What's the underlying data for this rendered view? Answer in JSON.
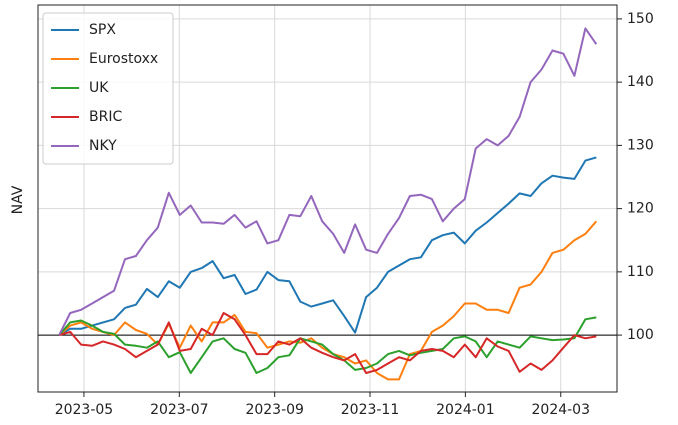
{
  "chart_data": {
    "type": "line",
    "y_label": "NAV",
    "x": [
      2023.29,
      2023.3092,
      2023.3283,
      2023.3475,
      2023.3666,
      2023.3858,
      2023.405,
      2023.4241,
      2023.4433,
      2023.4624,
      2023.4816,
      2023.5008,
      2023.5199,
      2023.5391,
      2023.5582,
      2023.5774,
      2023.5966,
      2023.6157,
      2023.6349,
      2023.654,
      2023.6732,
      2023.6924,
      2023.7115,
      2023.7307,
      2023.7498,
      2023.769,
      2023.7882,
      2023.8073,
      2023.8265,
      2023.8456,
      2023.8648,
      2023.884,
      2023.9031,
      2023.9223,
      2023.9414,
      2023.9606,
      2023.9798,
      2023.9989,
      2024.0181,
      2024.0372,
      2024.0564,
      2024.0756,
      2024.0947,
      2024.1139,
      2024.133,
      2024.1522,
      2024.1714,
      2024.1905,
      2024.2097,
      2024.2288
    ],
    "series": [
      {
        "name": "SPX",
        "color": "#1f77b4",
        "values": [
          100,
          101,
          101,
          101.5,
          102,
          102.5,
          104.3,
          104.8,
          107.3,
          106,
          108.5,
          107.5,
          110,
          110.6,
          111.7,
          109,
          109.5,
          106.5,
          107.2,
          110,
          108.7,
          108.5,
          105.3,
          104.5,
          105,
          105.5,
          103,
          100.4,
          106,
          107.5,
          110,
          111,
          112,
          112.3,
          115,
          115.8,
          116.2,
          114.5,
          116.5,
          117.8,
          119.3,
          120.8,
          122.4,
          122,
          124,
          125.2,
          124.9,
          124.7,
          127.6,
          128.1
        ]
      },
      {
        "name": "Eurostoxx",
        "color": "#ff7f0e",
        "values": [
          100,
          101.5,
          102,
          101,
          100.5,
          100,
          102,
          100.8,
          100.2,
          98.5,
          101.8,
          98,
          101.5,
          99,
          102,
          102,
          103.2,
          100.5,
          100.3,
          98,
          98.5,
          99,
          98.8,
          99.5,
          98,
          97,
          96.5,
          95.5,
          96,
          94,
          93,
          93,
          97,
          97.5,
          100.5,
          101.5,
          103,
          105,
          105,
          104,
          104,
          103.5,
          107.5,
          108,
          110,
          113,
          113.5,
          115,
          116,
          118
        ]
      },
      {
        "name": "UK",
        "color": "#2ca02c",
        "values": [
          100,
          102,
          102.3,
          101.5,
          100.5,
          100.2,
          98.5,
          98.3,
          98,
          99,
          96.5,
          97.3,
          94,
          96.5,
          99,
          99.5,
          97.8,
          97.2,
          94,
          94.8,
          96.5,
          96.8,
          99.5,
          99,
          98.5,
          97,
          96,
          94.5,
          94.8,
          95.5,
          97,
          97.5,
          96.8,
          97.2,
          97.5,
          97.8,
          99.5,
          99.8,
          99,
          96.5,
          99,
          98.5,
          98,
          99.8,
          99.5,
          99.2,
          99.3,
          99.5,
          102.5,
          102.8
        ]
      },
      {
        "name": "BRIC",
        "color": "#d62728",
        "values": [
          100,
          100.5,
          98.5,
          98.3,
          99,
          98.5,
          97.8,
          96.5,
          97.5,
          98.5,
          102,
          97.5,
          97.8,
          101,
          100,
          103.5,
          102.5,
          100,
          97,
          97,
          99,
          98.5,
          99.5,
          98,
          97.2,
          96.5,
          96,
          97,
          94,
          94.5,
          95.5,
          96.5,
          96,
          97.5,
          97.8,
          97.5,
          96.5,
          98.5,
          96.5,
          99.5,
          98.2,
          97.5,
          94.2,
          95.5,
          94.5,
          96,
          98,
          100,
          99.5,
          99.8
        ]
      },
      {
        "name": "NKY",
        "color": "#9467bd",
        "values": [
          100,
          103.5,
          104,
          105,
          106,
          107,
          112,
          112.5,
          115,
          117,
          122.5,
          119,
          120.5,
          117.8,
          117.8,
          117.6,
          119,
          117,
          118,
          114.5,
          115,
          119,
          118.8,
          122,
          118,
          116,
          113,
          117.5,
          113.5,
          113,
          116,
          118.5,
          122,
          122.2,
          121.5,
          118,
          120,
          121.5,
          129.5,
          131,
          130,
          131.5,
          134.5,
          140,
          142,
          145,
          144.5,
          141,
          148.5,
          146
        ]
      }
    ],
    "xlim": [
      2023.253,
      2024.265
    ],
    "xticks": [
      {
        "value": 2023.3333,
        "label": "2023-05"
      },
      {
        "value": 2023.5,
        "label": "2023-07"
      },
      {
        "value": 2023.6667,
        "label": "2023-09"
      },
      {
        "value": 2023.8333,
        "label": "2023-11"
      },
      {
        "value": 2024.0,
        "label": "2024-01"
      },
      {
        "value": 2024.1667,
        "label": "2024-03"
      }
    ],
    "ylim": [
      91,
      152.2
    ],
    "yticks": [
      100,
      110,
      120,
      130,
      140,
      150
    ],
    "y_axis_side": "right",
    "hline": 100,
    "grid": true,
    "legend": "upper-left"
  }
}
